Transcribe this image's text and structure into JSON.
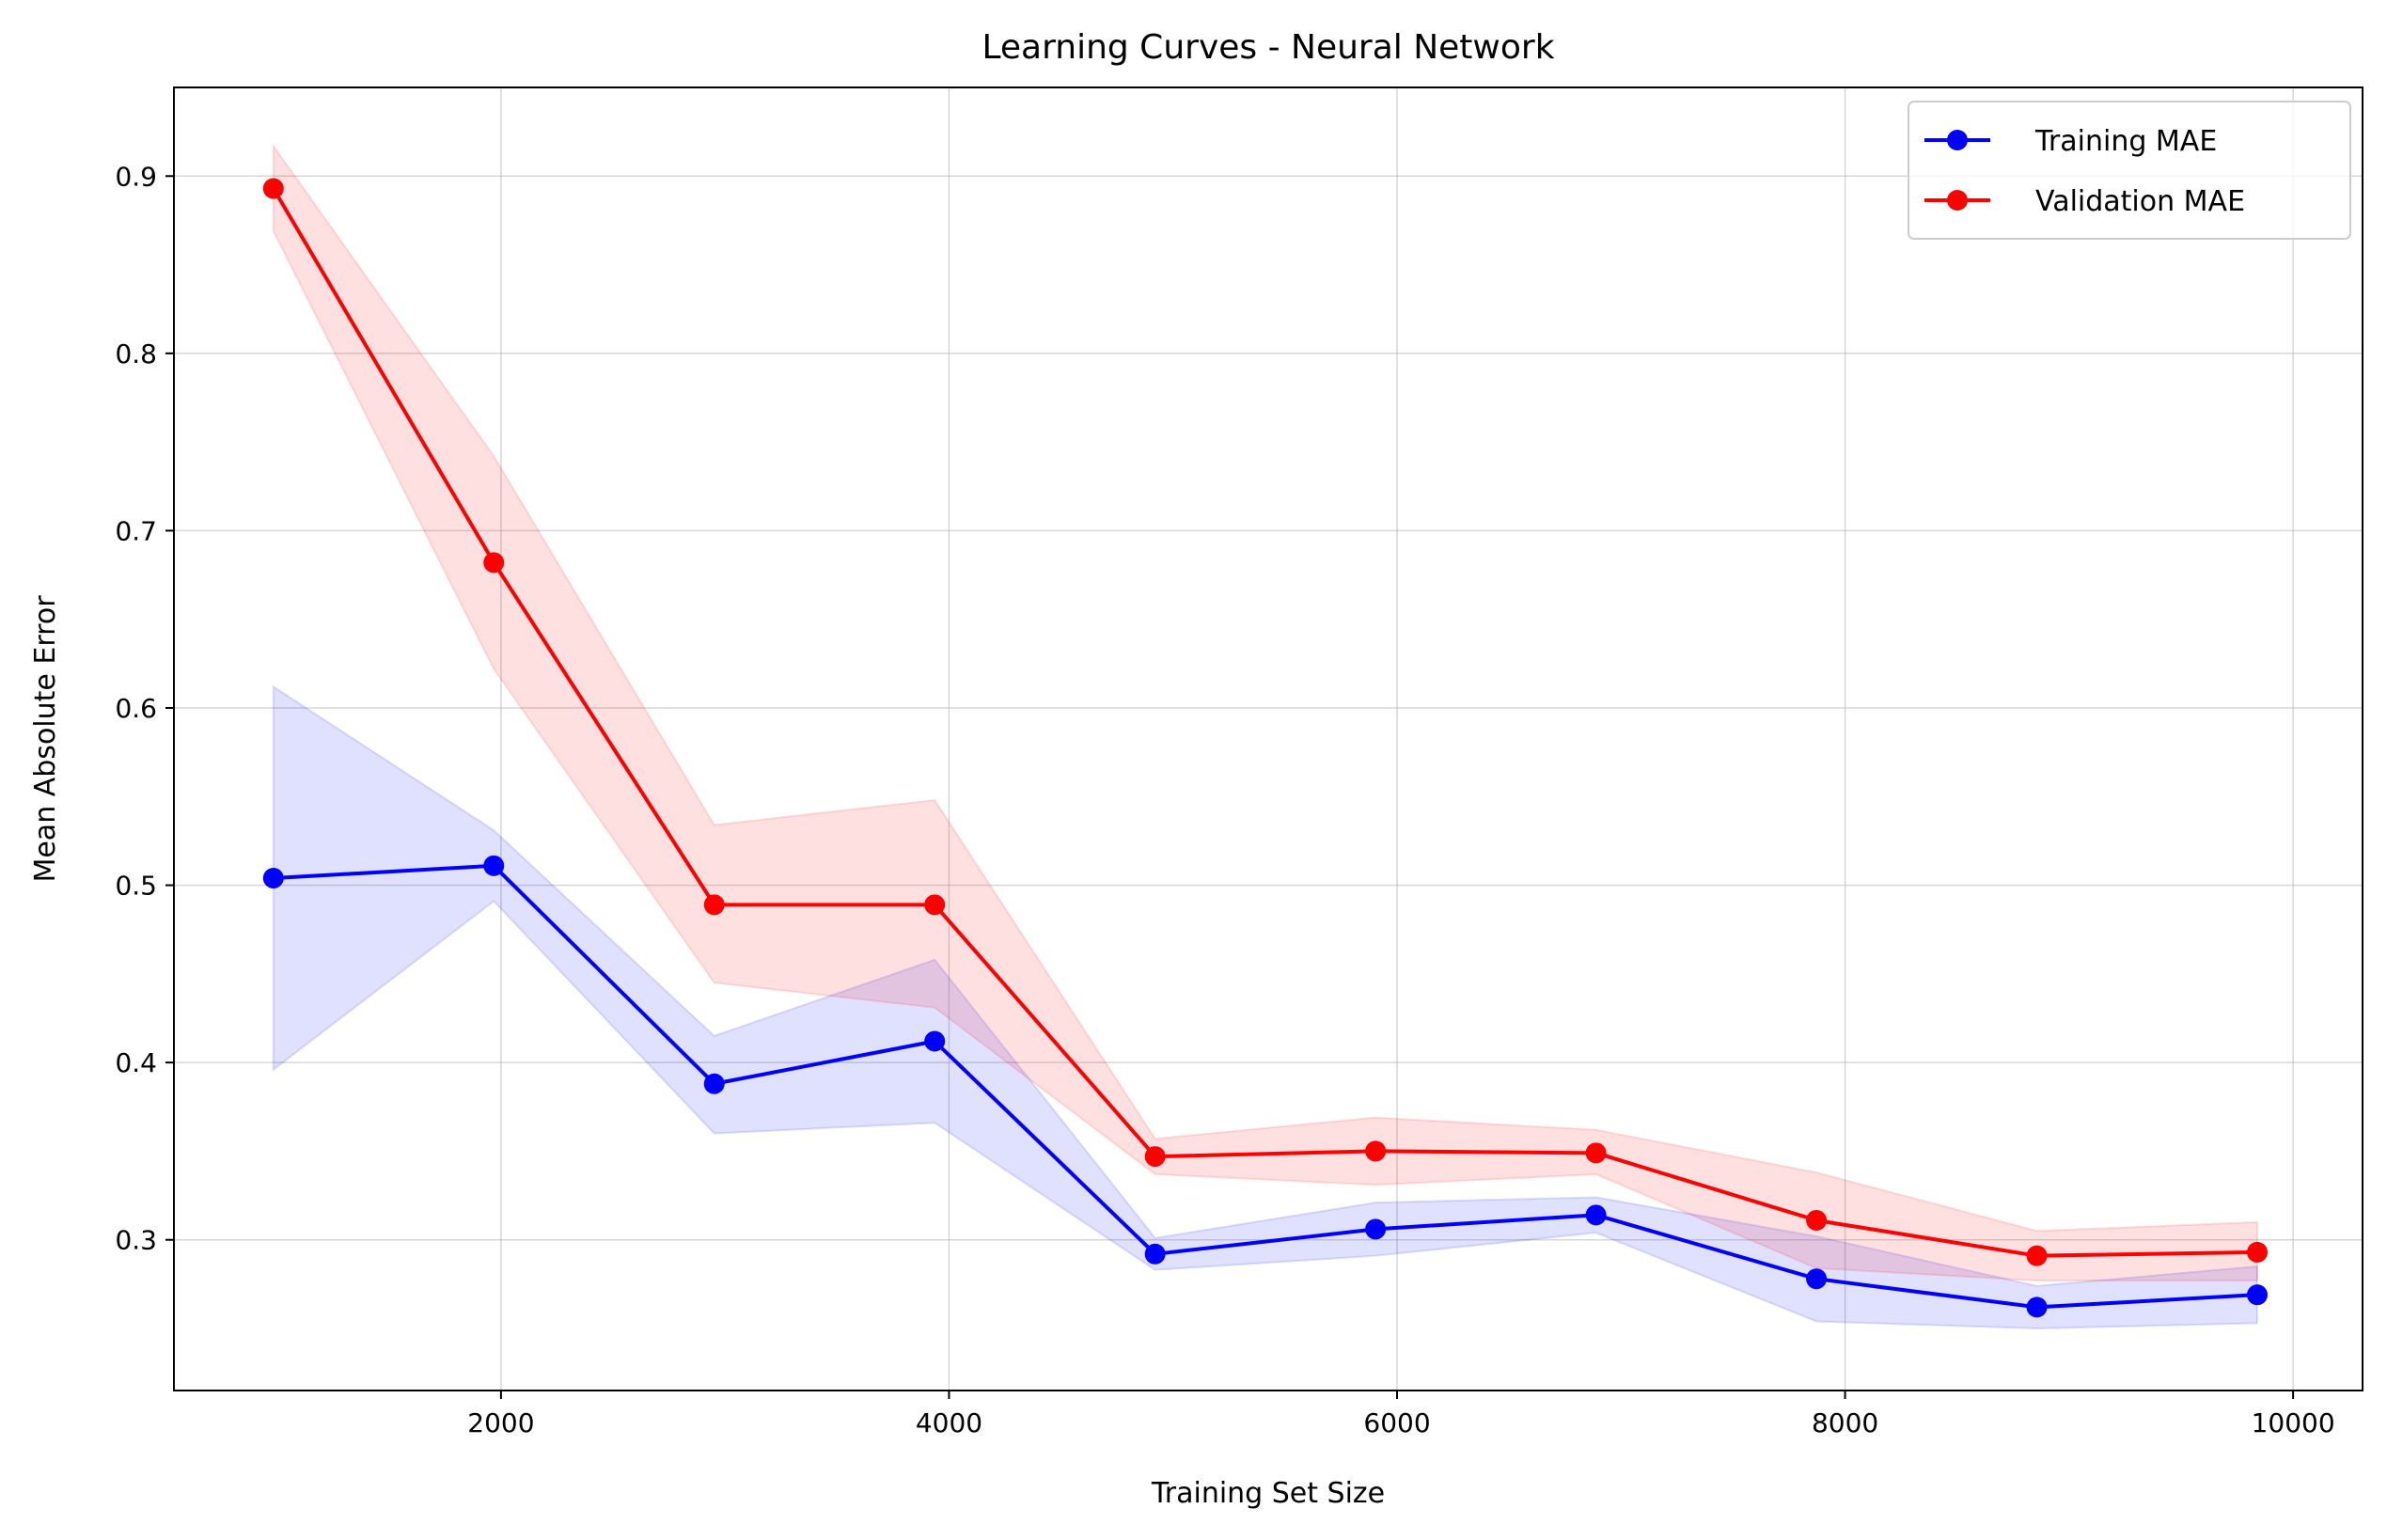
{
  "chart_data": {
    "type": "line",
    "title": "Learning Curves - Neural Network",
    "xlabel": "Training Set Size",
    "ylabel": "Mean Absolute Error",
    "xlim": [
      540,
      10310
    ],
    "ylim": [
      0.215,
      0.95
    ],
    "x_ticks": [
      2000,
      4000,
      6000,
      8000,
      10000
    ],
    "y_ticks": [
      0.3,
      0.4,
      0.5,
      0.6,
      0.7,
      0.8,
      0.9
    ],
    "grid": true,
    "legend_position": "top-right",
    "x": [
      984,
      1968,
      2952,
      3936,
      4920,
      5904,
      6888,
      7872,
      8856,
      9840
    ],
    "series": [
      {
        "name": "Training MAE",
        "color": "#0000ff",
        "band_color": "#0000ff",
        "values": [
          0.504,
          0.511,
          0.388,
          0.412,
          0.292,
          0.306,
          0.314,
          0.278,
          0.262,
          0.269
        ],
        "lower": [
          0.396,
          0.491,
          0.36,
          0.366,
          0.283,
          0.291,
          0.304,
          0.254,
          0.25,
          0.253
        ],
        "upper": [
          0.612,
          0.531,
          0.415,
          0.458,
          0.301,
          0.321,
          0.324,
          0.302,
          0.274,
          0.285
        ]
      },
      {
        "name": "Validation MAE",
        "color": "#ff0000",
        "band_color": "#ff0000",
        "values": [
          0.893,
          0.682,
          0.489,
          0.489,
          0.347,
          0.35,
          0.349,
          0.311,
          0.291,
          0.293
        ],
        "lower": [
          0.869,
          0.622,
          0.445,
          0.431,
          0.337,
          0.331,
          0.337,
          0.284,
          0.277,
          0.277
        ],
        "upper": [
          0.917,
          0.742,
          0.534,
          0.548,
          0.357,
          0.369,
          0.362,
          0.338,
          0.305,
          0.31
        ]
      }
    ]
  }
}
